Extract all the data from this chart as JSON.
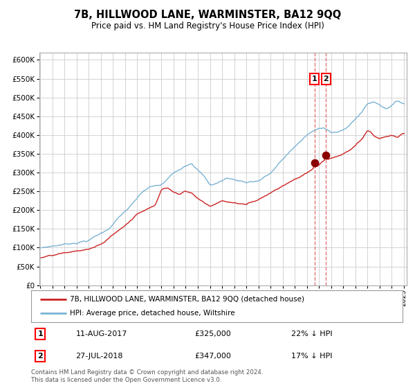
{
  "title": "7B, HILLWOOD LANE, WARMINSTER, BA12 9QQ",
  "subtitle": "Price paid vs. HM Land Registry's House Price Index (HPI)",
  "legend_line1": "7B, HILLWOOD LANE, WARMINSTER, BA12 9QQ (detached house)",
  "legend_line2": "HPI: Average price, detached house, Wiltshire",
  "sale1_date": "11-AUG-2017",
  "sale1_price": 325000,
  "sale1_label": "22% ↓ HPI",
  "sale2_date": "27-JUL-2018",
  "sale2_price": 347000,
  "sale2_label": "17% ↓ HPI",
  "footer": "Contains HM Land Registry data © Crown copyright and database right 2024.\nThis data is licensed under the Open Government Licence v3.0.",
  "hpi_color": "#7ab3d4",
  "price_color": "#cc2222",
  "sale_marker_color": "#8b0000",
  "vline_color": "#dd6666",
  "background_color": "#ffffff",
  "grid_color": "#cccccc",
  "ylim": [
    0,
    620000
  ],
  "yticks": [
    0,
    50000,
    100000,
    150000,
    200000,
    250000,
    300000,
    350000,
    400000,
    450000,
    500000,
    550000,
    600000
  ],
  "sale1_x": 2017.625,
  "sale2_x": 2018.583,
  "hpi_keypoints": [
    [
      1995.0,
      98000
    ],
    [
      1996.0,
      104000
    ],
    [
      1997.5,
      112000
    ],
    [
      1999.0,
      123000
    ],
    [
      2000.5,
      150000
    ],
    [
      2001.5,
      185000
    ],
    [
      2002.5,
      215000
    ],
    [
      2003.5,
      250000
    ],
    [
      2004.0,
      260000
    ],
    [
      2005.0,
      265000
    ],
    [
      2006.0,
      295000
    ],
    [
      2007.0,
      320000
    ],
    [
      2007.5,
      330000
    ],
    [
      2008.5,
      295000
    ],
    [
      2009.0,
      270000
    ],
    [
      2009.5,
      275000
    ],
    [
      2010.5,
      290000
    ],
    [
      2011.0,
      285000
    ],
    [
      2012.0,
      280000
    ],
    [
      2013.0,
      285000
    ],
    [
      2014.0,
      305000
    ],
    [
      2015.0,
      340000
    ],
    [
      2016.0,
      375000
    ],
    [
      2017.0,
      405000
    ],
    [
      2017.5,
      415000
    ],
    [
      2018.0,
      420000
    ],
    [
      2018.5,
      425000
    ],
    [
      2019.0,
      415000
    ],
    [
      2019.5,
      415000
    ],
    [
      2020.0,
      418000
    ],
    [
      2020.5,
      430000
    ],
    [
      2021.0,
      450000
    ],
    [
      2021.5,
      465000
    ],
    [
      2022.0,
      490000
    ],
    [
      2022.5,
      495000
    ],
    [
      2023.0,
      490000
    ],
    [
      2023.5,
      480000
    ],
    [
      2024.0,
      490000
    ],
    [
      2024.5,
      500000
    ],
    [
      2025.0,
      495000
    ]
  ],
  "price_keypoints": [
    [
      1995.0,
      73000
    ],
    [
      1996.0,
      77000
    ],
    [
      1997.0,
      82000
    ],
    [
      1998.0,
      87000
    ],
    [
      1999.0,
      92000
    ],
    [
      2000.0,
      103000
    ],
    [
      2001.0,
      130000
    ],
    [
      2002.0,
      155000
    ],
    [
      2002.5,
      170000
    ],
    [
      2003.0,
      185000
    ],
    [
      2003.5,
      195000
    ],
    [
      2004.0,
      205000
    ],
    [
      2004.5,
      215000
    ],
    [
      2005.0,
      255000
    ],
    [
      2005.5,
      260000
    ],
    [
      2006.0,
      250000
    ],
    [
      2006.5,
      245000
    ],
    [
      2007.0,
      255000
    ],
    [
      2007.5,
      250000
    ],
    [
      2008.0,
      235000
    ],
    [
      2009.0,
      215000
    ],
    [
      2010.0,
      230000
    ],
    [
      2011.0,
      225000
    ],
    [
      2012.0,
      220000
    ],
    [
      2013.0,
      235000
    ],
    [
      2014.0,
      255000
    ],
    [
      2015.0,
      275000
    ],
    [
      2016.0,
      295000
    ],
    [
      2016.5,
      302000
    ],
    [
      2017.0,
      310000
    ],
    [
      2017.5,
      322000
    ],
    [
      2017.625,
      325000
    ],
    [
      2018.0,
      332000
    ],
    [
      2018.583,
      347000
    ],
    [
      2019.0,
      348000
    ],
    [
      2019.5,
      352000
    ],
    [
      2020.0,
      358000
    ],
    [
      2020.5,
      365000
    ],
    [
      2021.0,
      378000
    ],
    [
      2021.5,
      392000
    ],
    [
      2022.0,
      415000
    ],
    [
      2022.3,
      410000
    ],
    [
      2022.6,
      400000
    ],
    [
      2023.0,
      395000
    ],
    [
      2023.5,
      398000
    ],
    [
      2024.0,
      402000
    ],
    [
      2024.5,
      398000
    ],
    [
      2025.0,
      408000
    ]
  ]
}
